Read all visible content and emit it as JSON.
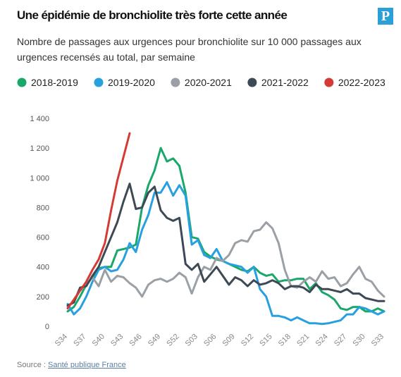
{
  "logo": "P",
  "chart_data": {
    "type": "line",
    "title": "Une épidémie de bronchiolite très forte cette année",
    "subtitle": "Nombre de passages aux urgences pour bronchiolite sur 10 000 passages aux urgences recensés au total, par semaine",
    "source_label": "Source :",
    "source_link": "Santé publique France",
    "categories": [
      "S34",
      null,
      null,
      "S37",
      null,
      null,
      "S40",
      null,
      null,
      "S43",
      null,
      null,
      "S46",
      null,
      null,
      "S49",
      null,
      null,
      "S52",
      null,
      null,
      "S03",
      null,
      null,
      "S06",
      null,
      null,
      "S09",
      null,
      null,
      "S12",
      null,
      null,
      "S15",
      null,
      null,
      "S18",
      null,
      null,
      "S21",
      null,
      null,
      "S24",
      null,
      null,
      "S27",
      null,
      null,
      "S30",
      null,
      null,
      "S33"
    ],
    "ylim": [
      0,
      1400
    ],
    "yticks": [
      0,
      200,
      400,
      600,
      800,
      {
        "value": 1000,
        "label": "1 000"
      },
      {
        "value": 1200,
        "label": "1 200"
      },
      {
        "value": 1400,
        "label": "1 400"
      }
    ],
    "series": [
      {
        "name": "2018-2019",
        "color": "#1aa86a",
        "values": [
          100,
          130,
          200,
          280,
          330,
          390,
          400,
          400,
          510,
          520,
          530,
          550,
          800,
          950,
          1050,
          1200,
          1110,
          1130,
          1080,
          900,
          600,
          590,
          500,
          470,
          450,
          440,
          420,
          400,
          380,
          370,
          400,
          360,
          340,
          350,
          300,
          310,
          310,
          320,
          320,
          250,
          290,
          230,
          210,
          180,
          120,
          110,
          130,
          130,
          100,
          100,
          120,
          100
        ]
      },
      {
        "name": "2019-2020",
        "color": "#27a0e0",
        "values": [
          150,
          80,
          120,
          200,
          300,
          380,
          400,
          370,
          380,
          450,
          560,
          500,
          650,
          750,
          900,
          900,
          970,
          880,
          950,
          880,
          550,
          580,
          480,
          460,
          520,
          440,
          420,
          410,
          400,
          360,
          400,
          250,
          200,
          70,
          70,
          60,
          40,
          60,
          40,
          20,
          20,
          15,
          20,
          30,
          40,
          80,
          80,
          130,
          120,
          100,
          80,
          100
        ]
      },
      {
        "name": "2020-2021",
        "color": "#9aa0a6",
        "values": [
          130,
          170,
          240,
          280,
          330,
          270,
          380,
          300,
          340,
          330,
          290,
          260,
          200,
          280,
          310,
          320,
          300,
          320,
          360,
          330,
          220,
          330,
          400,
          380,
          460,
          440,
          480,
          560,
          580,
          570,
          640,
          650,
          700,
          660,
          560,
          380,
          270,
          260,
          300,
          330,
          300,
          370,
          320,
          330,
          270,
          290,
          350,
          400,
          320,
          300,
          240,
          200
        ]
      },
      {
        "name": "2021-2022",
        "color": "#3d4a55",
        "values": [
          140,
          160,
          260,
          270,
          340,
          400,
          500,
          600,
          700,
          840,
          960,
          790,
          800,
          900,
          940,
          780,
          730,
          710,
          730,
          420,
          380,
          420,
          300,
          350,
          400,
          340,
          280,
          330,
          310,
          270,
          310,
          280,
          290,
          310,
          290,
          250,
          270,
          270,
          260,
          230,
          280,
          250,
          250,
          240,
          230,
          250,
          220,
          220,
          190,
          180,
          170,
          170
        ]
      },
      {
        "name": "2022-2023",
        "color": "#d63a35",
        "values": [
          120,
          180,
          240,
          300,
          380,
          450,
          560,
          780,
          980,
          1140,
          1300,
          null,
          null,
          null,
          null,
          null,
          null,
          null,
          null,
          null,
          null,
          null,
          null,
          null,
          null,
          null,
          null,
          null,
          null,
          null,
          null,
          null,
          null,
          null,
          null,
          null,
          null,
          null,
          null,
          null,
          null,
          null,
          null,
          null,
          null,
          null,
          null,
          null,
          null,
          null,
          null,
          null
        ]
      }
    ]
  }
}
